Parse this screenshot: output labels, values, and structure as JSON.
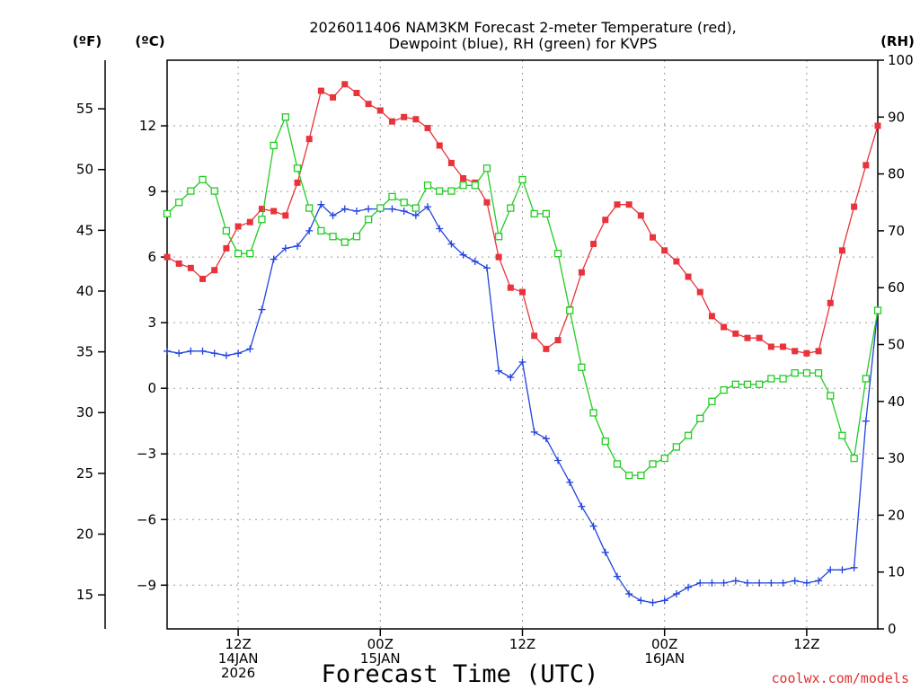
{
  "chart_data": {
    "type": "line",
    "title_lines": [
      "2026011406 NAM3KM Forecast 2-meter Temperature (red),",
      "Dewpoint (blue), RH (green) for KVPS"
    ],
    "units": {
      "fahrenheit": "(ºF)",
      "celsius": "(ºC)",
      "rh": "(RH)"
    },
    "xlabel": "Forecast Time (UTC)",
    "credit": "coolwx.com/models",
    "x_range_hours": [
      6,
      66
    ],
    "x_ticks": [
      {
        "hour": 12,
        "lines": [
          "12Z",
          "14JAN",
          "2026"
        ]
      },
      {
        "hour": 24,
        "lines": [
          "00Z",
          "15JAN"
        ]
      },
      {
        "hour": 36,
        "lines": [
          "12Z"
        ]
      },
      {
        "hour": 48,
        "lines": [
          "00Z",
          "16JAN"
        ]
      },
      {
        "hour": 60,
        "lines": [
          "12Z"
        ]
      }
    ],
    "y_celsius": {
      "range": [
        -11,
        15
      ],
      "ticks": [
        "12",
        "9",
        "6",
        "3",
        "0",
        "−3",
        "−6",
        "−9"
      ],
      "tick_values": [
        12,
        9,
        6,
        3,
        0,
        -3,
        -6,
        -9
      ]
    },
    "y_fahrenheit": {
      "range": [
        12.2,
        59
      ],
      "ticks": [
        "55",
        "50",
        "45",
        "40",
        "35",
        "30",
        "25",
        "20",
        "15"
      ],
      "tick_values": [
        55,
        50,
        45,
        40,
        35,
        30,
        25,
        20,
        15
      ]
    },
    "y_rh": {
      "range": [
        0,
        100
      ],
      "ticks": [
        "100",
        "90",
        "80",
        "70",
        "60",
        "50",
        "40",
        "30",
        "20",
        "10",
        "0"
      ],
      "tick_values": [
        100,
        90,
        80,
        70,
        60,
        50,
        40,
        30,
        20,
        10,
        0
      ]
    },
    "series": [
      {
        "name": "Temperature (°C)",
        "color": "#e8333b",
        "axis": "celsius",
        "marker": "filled-square",
        "values": [
          6.0,
          5.7,
          5.5,
          5.0,
          5.4,
          6.4,
          7.4,
          7.6,
          8.2,
          8.1,
          7.9,
          9.4,
          11.4,
          13.6,
          13.3,
          13.9,
          13.5,
          13.0,
          12.7,
          12.2,
          12.4,
          12.3,
          11.9,
          11.1,
          10.3,
          9.6,
          9.4,
          8.5,
          6.0,
          4.6,
          4.4,
          2.4,
          1.8,
          2.2,
          3.6,
          5.3,
          6.6,
          7.7,
          8.4,
          8.4,
          7.9,
          6.9,
          6.3,
          5.8,
          5.1,
          4.4,
          3.3,
          2.8,
          2.5,
          2.3,
          2.3,
          1.9,
          1.9,
          1.7,
          1.6,
          1.7,
          3.9,
          6.3,
          8.3,
          10.2,
          12.0
        ]
      },
      {
        "name": "Dewpoint (°C)",
        "color": "#2244dd",
        "axis": "celsius",
        "marker": "plus",
        "values": [
          1.7,
          1.6,
          1.7,
          1.7,
          1.6,
          1.5,
          1.6,
          1.8,
          3.6,
          5.9,
          6.4,
          6.5,
          7.2,
          8.4,
          7.9,
          8.2,
          8.1,
          8.2,
          8.2,
          8.2,
          8.1,
          7.9,
          8.3,
          7.3,
          6.6,
          6.1,
          5.8,
          5.5,
          0.8,
          0.5,
          1.2,
          -2.0,
          -2.3,
          -3.3,
          -4.3,
          -5.4,
          -6.3,
          -7.5,
          -8.6,
          -9.4,
          -9.7,
          -9.8,
          -9.7,
          -9.4,
          -9.1,
          -8.9,
          -8.9,
          -8.9,
          -8.8,
          -8.9,
          -8.9,
          -8.9,
          -8.9,
          -8.8,
          -8.9,
          -8.8,
          -8.3,
          -8.3,
          -8.2,
          -1.5,
          3.6
        ]
      },
      {
        "name": "RH (%)",
        "color": "#22cc22",
        "axis": "rh",
        "marker": "open-square",
        "values": [
          73,
          75,
          77,
          79,
          77,
          70,
          66,
          66,
          72,
          85,
          90,
          81,
          74,
          70,
          69,
          68,
          69,
          72,
          74,
          76,
          75,
          74,
          78,
          77,
          77,
          78,
          78,
          81,
          69,
          74,
          79,
          73,
          73,
          66,
          56,
          46,
          38,
          33,
          29,
          27,
          27,
          29,
          30,
          32,
          34,
          37,
          40,
          42,
          43,
          43,
          43,
          44,
          44,
          45,
          45,
          45,
          41,
          34,
          30,
          44,
          56
        ]
      }
    ]
  }
}
